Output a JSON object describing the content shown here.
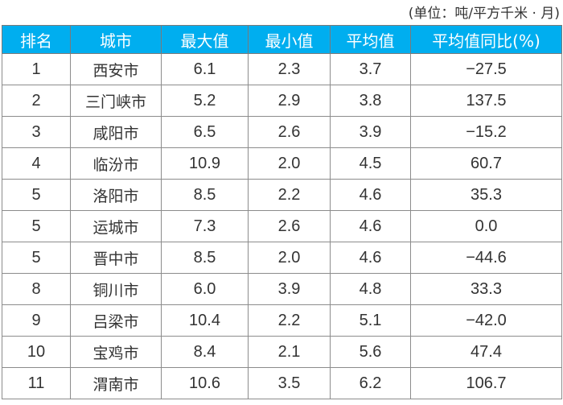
{
  "unit_note": "(单位：吨/平方千米 · 月)",
  "header_color": "#00aeef",
  "chart_data": {
    "type": "table",
    "columns": [
      "排名",
      "城市",
      "最大值",
      "最小值",
      "平均值",
      "平均值同比(%)"
    ],
    "rows": [
      [
        "1",
        "西安市",
        "6.1",
        "2.3",
        "3.7",
        "−27.5"
      ],
      [
        "2",
        "三门峡市",
        "5.2",
        "2.9",
        "3.8",
        "137.5"
      ],
      [
        "3",
        "咸阳市",
        "6.5",
        "2.6",
        "3.9",
        "−15.2"
      ],
      [
        "4",
        "临汾市",
        "10.9",
        "2.0",
        "4.5",
        "60.7"
      ],
      [
        "5",
        "洛阳市",
        "8.5",
        "2.2",
        "4.6",
        "35.3"
      ],
      [
        "5",
        "运城市",
        "7.3",
        "2.6",
        "4.6",
        "0.0"
      ],
      [
        "5",
        "晋中市",
        "8.5",
        "2.0",
        "4.6",
        "−44.6"
      ],
      [
        "8",
        "铜川市",
        "6.0",
        "3.9",
        "4.8",
        "33.3"
      ],
      [
        "9",
        "吕梁市",
        "10.4",
        "2.2",
        "5.1",
        "−42.0"
      ],
      [
        "10",
        "宝鸡市",
        "8.4",
        "2.1",
        "5.6",
        "47.4"
      ],
      [
        "11",
        "渭南市",
        "10.6",
        "3.5",
        "6.2",
        "106.7"
      ]
    ]
  }
}
